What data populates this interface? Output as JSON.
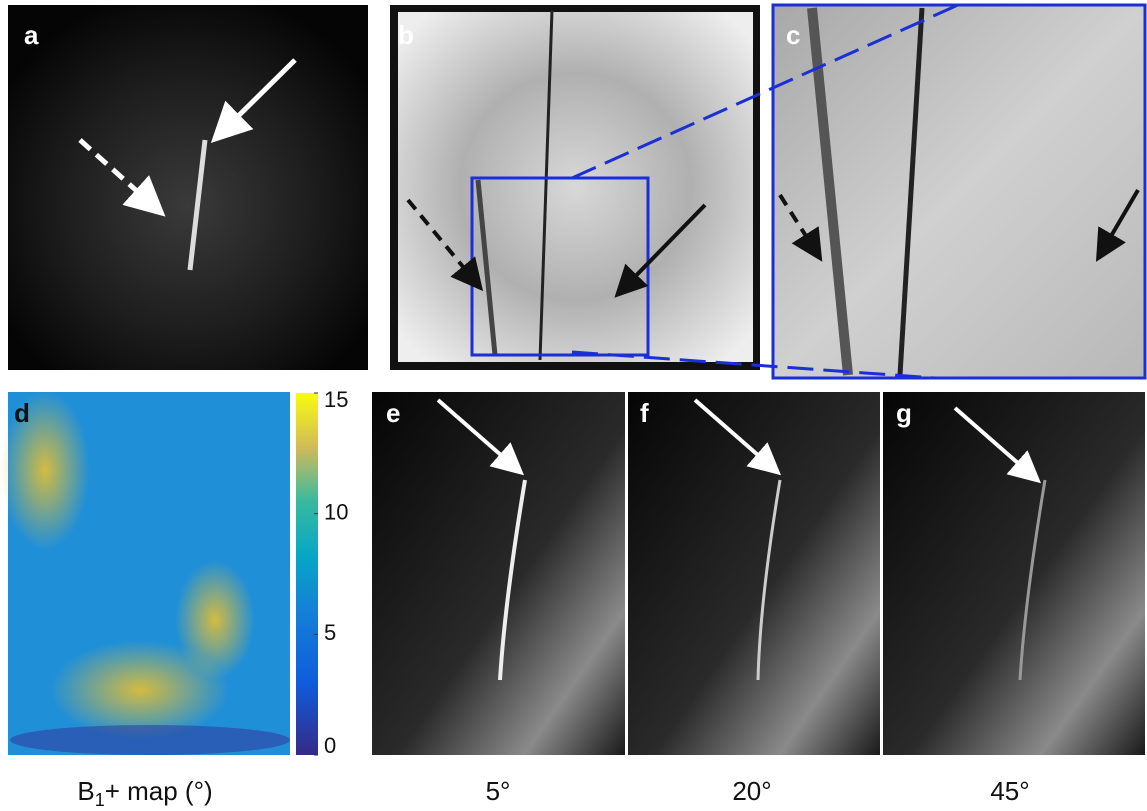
{
  "panels": {
    "a": "a",
    "b": "b",
    "c": "c",
    "d": "d",
    "e": "e",
    "f": "f",
    "g": "g"
  },
  "colorbar": {
    "lim": [
      0,
      15
    ],
    "ticks": [
      0,
      5,
      10,
      15
    ]
  },
  "captions": {
    "b1_base": "B",
    "b1_sub": "1",
    "b1_rest": "+ map (°)",
    "e": "5°",
    "f": "20°",
    "g": "45°"
  }
}
